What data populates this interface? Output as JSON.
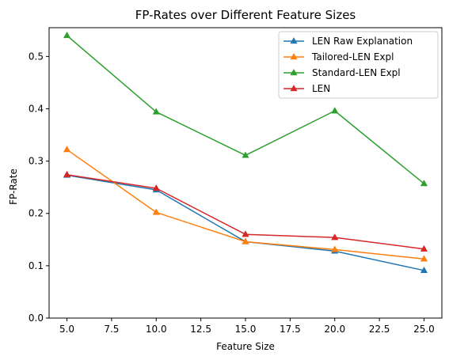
{
  "chart_data": {
    "type": "line",
    "title": "FP-Rates over Different Feature Sizes",
    "xlabel": "Feature Size",
    "ylabel": "FP-Rate",
    "xlim": [
      4.0,
      26.0
    ],
    "ylim": [
      0.0,
      0.555
    ],
    "x_ticks": [
      "5.0",
      "7.5",
      "10.0",
      "12.5",
      "15.0",
      "17.5",
      "20.0",
      "22.5",
      "25.0"
    ],
    "y_ticks": [
      "0.0",
      "0.1",
      "0.2",
      "0.3",
      "0.4",
      "0.5"
    ],
    "x": [
      5,
      10,
      15,
      20,
      25
    ],
    "series": [
      {
        "name": "LEN Raw Explanation",
        "color": "#1f77b4",
        "marker": "triangle",
        "values": [
          0.273,
          0.245,
          0.146,
          0.128,
          0.091
        ]
      },
      {
        "name": "Tailored-LEN Expl",
        "color": "#ff7f0e",
        "marker": "triangle",
        "values": [
          0.322,
          0.202,
          0.146,
          0.131,
          0.113
        ]
      },
      {
        "name": "Standard-LEN Expl",
        "color": "#2ca02c",
        "marker": "triangle",
        "values": [
          0.54,
          0.394,
          0.311,
          0.396,
          0.257
        ]
      },
      {
        "name": "LEN",
        "color": "#d62728",
        "marker": "triangle",
        "values": [
          0.274,
          0.248,
          0.16,
          0.154,
          0.132
        ]
      }
    ],
    "legend": {
      "location": "upper-right"
    },
    "grid": false
  }
}
